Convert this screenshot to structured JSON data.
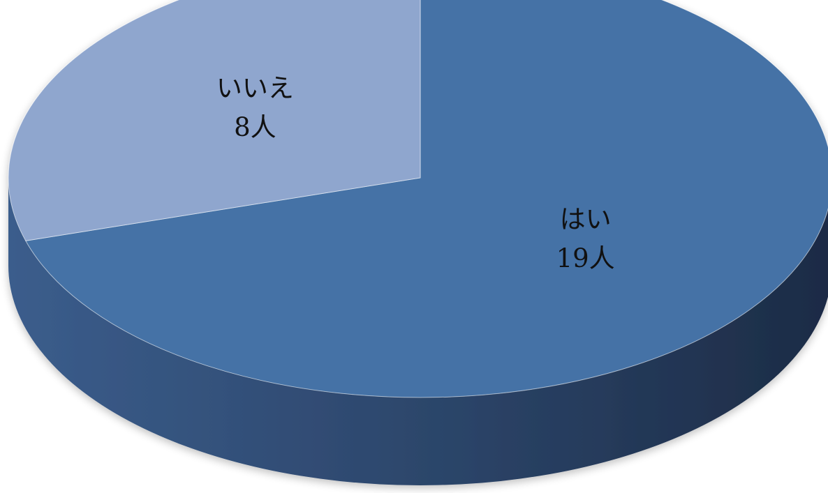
{
  "chart_data": {
    "type": "pie",
    "style": "3d",
    "title": "",
    "slices": [
      {
        "label": "はい",
        "value": 19,
        "value_label": "19人",
        "color": "#4472a6"
      },
      {
        "label": "いいえ",
        "value": 8,
        "value_label": "8人",
        "color": "#8fa6ce"
      }
    ],
    "side_colors": {
      "light": "#3b5d8c",
      "dark": "#1c2b45"
    },
    "start_angle_deg": 0,
    "direction": "clockwise",
    "legend": "none"
  }
}
